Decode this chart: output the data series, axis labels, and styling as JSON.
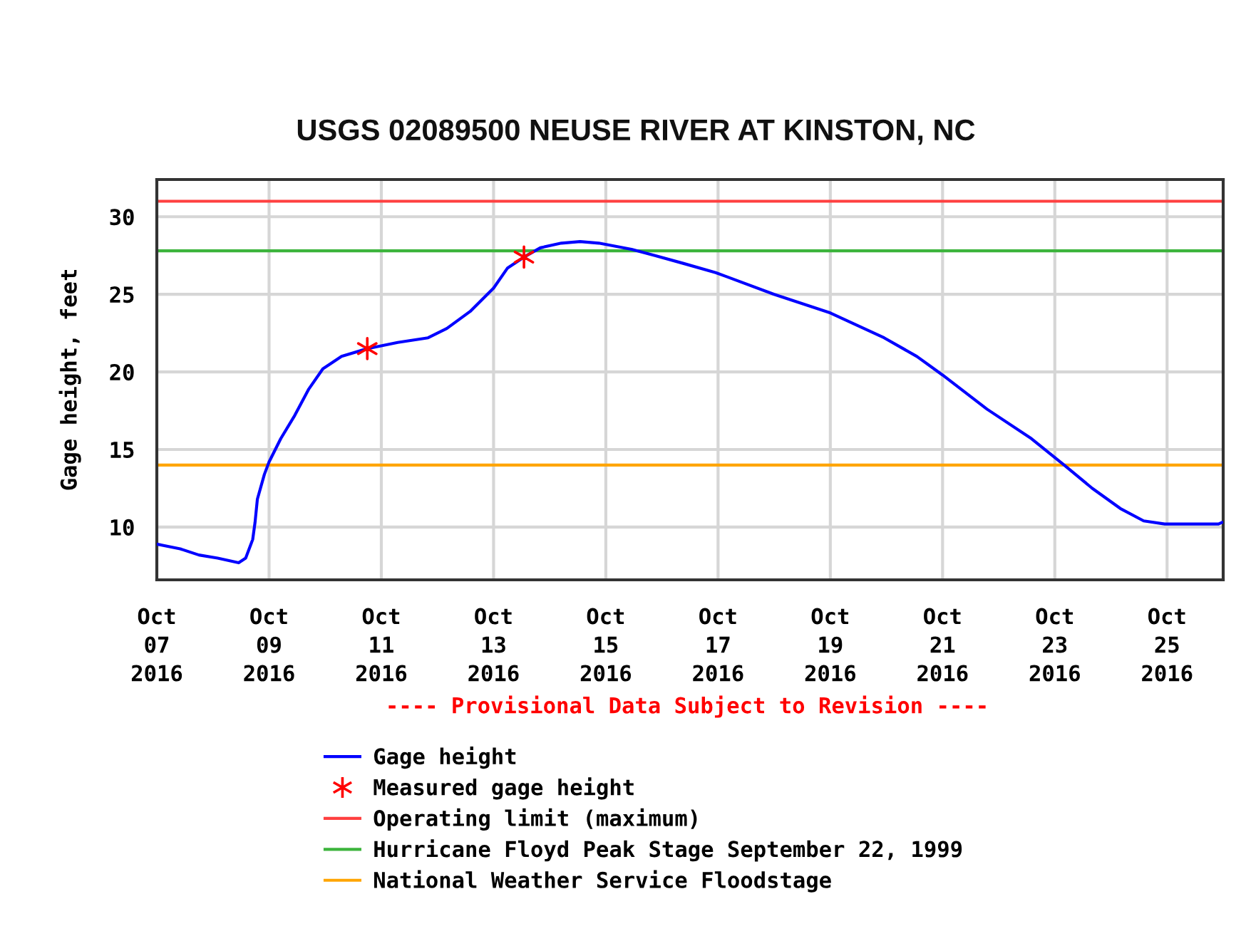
{
  "chart_data": {
    "type": "line",
    "title": "USGS 02089500 NEUSE RIVER AT KINSTON, NC",
    "ylabel": "Gage height, feet",
    "annotations": [
      "---- Provisional Data Subject to Revision ----"
    ],
    "series": [
      {
        "name": "Gage height",
        "color": "#0000ff",
        "x": [
          "2016-10-07T00:00",
          "2016-10-07T10:00",
          "2016-10-07T18:00",
          "2016-10-08T02:00",
          "2016-10-08T11:00",
          "2016-10-08T14:00",
          "2016-10-08T17:00",
          "2016-10-08T18:00",
          "2016-10-08T19:00",
          "2016-10-08T22:00",
          "2016-10-09T00:00",
          "2016-10-09T05:00",
          "2016-10-09T11:00",
          "2016-10-09T17:00",
          "2016-10-09T23:00",
          "2016-10-10T07:00",
          "2016-10-10T18:00",
          "2016-10-11T07:00",
          "2016-10-11T20:00",
          "2016-10-12T04:00",
          "2016-10-12T14:00",
          "2016-10-13T00:00",
          "2016-10-13T06:00",
          "2016-10-13T13:00",
          "2016-10-13T20:00",
          "2016-10-14T05:00",
          "2016-10-14T13:00",
          "2016-10-14T21:00",
          "2016-10-15T11:00",
          "2016-10-15T21:00",
          "2016-10-16T09:00",
          "2016-10-16T23:00",
          "2016-10-18T00:00",
          "2016-10-19T00:00",
          "2016-10-19T23:00",
          "2016-10-20T13:00",
          "2016-10-21T00:00",
          "2016-10-21T19:00",
          "2016-10-22T14:00",
          "2016-10-23T04:00",
          "2016-10-23T16:00",
          "2016-10-24T04:00",
          "2016-10-24T14:00",
          "2016-10-24T23:00",
          "2016-10-25T22:00",
          "2016-10-25T23:30"
        ],
        "values": [
          8.9,
          8.6,
          8.2,
          8.0,
          7.7,
          8.0,
          9.2,
          10.3,
          11.8,
          13.4,
          14.2,
          15.7,
          17.2,
          18.9,
          20.2,
          21.0,
          21.5,
          21.9,
          22.2,
          22.8,
          23.9,
          25.4,
          26.7,
          27.4,
          28.0,
          28.3,
          28.4,
          28.3,
          27.9,
          27.5,
          27.0,
          26.4,
          25.0,
          23.8,
          22.2,
          21.0,
          19.8,
          17.6,
          15.7,
          14.0,
          12.5,
          11.2,
          10.4,
          10.2,
          10.2,
          10.3
        ]
      },
      {
        "name": "Measured gage height",
        "type": "scatter",
        "color": "#ff0000",
        "marker": "cross",
        "x": [
          "2016-10-10T18:00",
          "2016-10-13T13:00"
        ],
        "values": [
          21.5,
          27.4
        ]
      }
    ],
    "xlim": [
      "2016-10-07",
      "2016-10-26"
    ],
    "xticks": [
      {
        "value": "2016-10-07",
        "label": "Oct\n07\n2016"
      },
      {
        "value": "2016-10-09",
        "label": "Oct\n09\n2016"
      },
      {
        "value": "2016-10-11",
        "label": "Oct\n11\n2016"
      },
      {
        "value": "2016-10-13",
        "label": "Oct\n13\n2016"
      },
      {
        "value": "2016-10-15",
        "label": "Oct\n15\n2016"
      },
      {
        "value": "2016-10-17",
        "label": "Oct\n17\n2016"
      },
      {
        "value": "2016-10-19",
        "label": "Oct\n19\n2016"
      },
      {
        "value": "2016-10-21",
        "label": "Oct\n21\n2016"
      },
      {
        "value": "2016-10-23",
        "label": "Oct\n23\n2016"
      },
      {
        "value": "2016-10-25",
        "label": "Oct\n25\n2016"
      }
    ],
    "ylim": [
      6.6,
      32.4
    ],
    "yticks": [
      10,
      15,
      20,
      25,
      30
    ],
    "grid": true,
    "ref_lines": [
      {
        "axis": "y",
        "value": 31.0,
        "label": "Operating limit (maximum)",
        "color": "#ff4040"
      },
      {
        "axis": "y",
        "value": 27.8,
        "label": "Hurricane Floyd Peak Stage September 22, 1999",
        "color": "#3cb43c"
      },
      {
        "axis": "y",
        "value": 14.0,
        "label": "National Weather Service Floodstage",
        "color": "#ffa500"
      }
    ],
    "legend": "bottom"
  }
}
